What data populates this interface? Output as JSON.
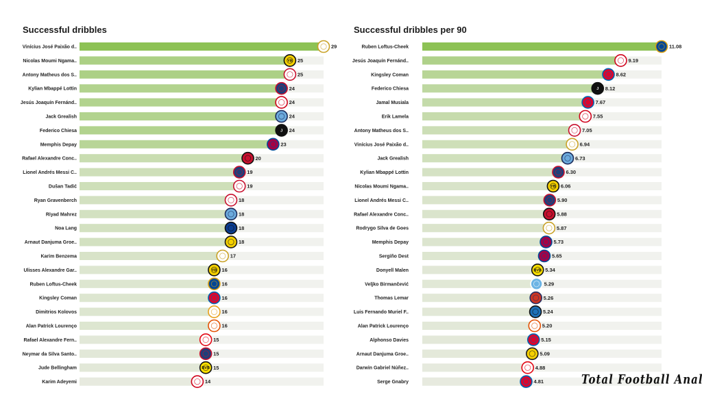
{
  "brand": "Total Football Analysis",
  "colors": {
    "bar_max": "#8dc255",
    "bar_min": "#e7eadf"
  },
  "chart_data": [
    {
      "type": "bar",
      "orientation": "horizontal",
      "title": "Successful dribbles",
      "xlim": [
        0,
        29
      ],
      "categories": [
        "Vinícius José Paixão d..",
        "Nicolas Moumi Ngama..",
        "Antony Matheus dos S..",
        "Kylian Mbappé Lottin",
        "Jesús Joaquín Fernánd..",
        "Jack Grealish",
        "Federico Chiesa",
        "Memphis Depay",
        "Rafael Alexandre Conc..",
        "Lionel Andrés Messi C..",
        "Dušan Tadić",
        "Ryan Gravenberch",
        "Riyad Mahrez",
        "Noa Lang",
        "Arnaut Danjuma Groe..",
        "Karim Benzema",
        "Ulisses Alexandre Gar..",
        "Ruben Loftus-Cheek",
        "Kingsley Coman",
        "Dimitrios Kolovos",
        "Alan Patrick Lourenço",
        "Rafael Alexandre Fern..",
        "Neymar da Silva Santo..",
        "Jude Bellingham",
        "Karim Adeyemi"
      ],
      "values": [
        29,
        25,
        25,
        24,
        24,
        24,
        24,
        23,
        20,
        19,
        19,
        18,
        18,
        18,
        18,
        17,
        16,
        16,
        16,
        16,
        16,
        15,
        15,
        15,
        14
      ],
      "value_labels": [
        "29",
        "25",
        "25",
        "24",
        "24",
        "24",
        "24",
        "23",
        "20",
        "19",
        "19",
        "18",
        "18",
        "18",
        "18",
        "17",
        "16",
        "16",
        "16",
        "16",
        "16",
        "15",
        "15",
        "15",
        "14"
      ],
      "badges": [
        {
          "fill": "#ffffff",
          "stroke": "#c9a227",
          "text": ""
        },
        {
          "fill": "#f5d000",
          "stroke": "#111111",
          "text": "YB"
        },
        {
          "fill": "#ffffff",
          "stroke": "#c8102e",
          "text": ""
        },
        {
          "fill": "#1d3f7a",
          "stroke": "#c8102e",
          "text": ""
        },
        {
          "fill": "#ffffff",
          "stroke": "#d0021b",
          "text": ""
        },
        {
          "fill": "#6cabdd",
          "stroke": "#1c2c5b",
          "text": ""
        },
        {
          "fill": "#111111",
          "stroke": "#111111",
          "text": "J"
        },
        {
          "fill": "#a50044",
          "stroke": "#004d98",
          "text": ""
        },
        {
          "fill": "#c8102e",
          "stroke": "#111111",
          "text": ""
        },
        {
          "fill": "#1d3f7a",
          "stroke": "#c8102e",
          "text": ""
        },
        {
          "fill": "#ffffff",
          "stroke": "#c8102e",
          "text": ""
        },
        {
          "fill": "#ffffff",
          "stroke": "#c8102e",
          "text": ""
        },
        {
          "fill": "#6cabdd",
          "stroke": "#1c2c5b",
          "text": ""
        },
        {
          "fill": "#0a3d91",
          "stroke": "#111111",
          "text": ""
        },
        {
          "fill": "#f5d000",
          "stroke": "#1b1b1b",
          "text": ""
        },
        {
          "fill": "#ffffff",
          "stroke": "#c9a227",
          "text": ""
        },
        {
          "fill": "#f5d000",
          "stroke": "#111111",
          "text": "YB"
        },
        {
          "fill": "#034694",
          "stroke": "#dba111",
          "text": ""
        },
        {
          "fill": "#dc052d",
          "stroke": "#0066b2",
          "text": ""
        },
        {
          "fill": "#ffffff",
          "stroke": "#e8a01c",
          "text": ""
        },
        {
          "fill": "#ffffff",
          "stroke": "#e35205",
          "text": ""
        },
        {
          "fill": "#ffffff",
          "stroke": "#e30613",
          "text": ""
        },
        {
          "fill": "#1d3f7a",
          "stroke": "#c8102e",
          "text": ""
        },
        {
          "fill": "#fde100",
          "stroke": "#111111",
          "text": "BVB"
        },
        {
          "fill": "#ffffff",
          "stroke": "#d0021b",
          "text": ""
        }
      ]
    },
    {
      "type": "bar",
      "orientation": "horizontal",
      "title": "Successful dribbles per 90",
      "xlim": [
        0,
        11.08
      ],
      "categories": [
        "Ruben Loftus-Cheek",
        "Jesús Joaquín Fernánd..",
        "Kingsley Coman",
        "Federico Chiesa",
        "Jamal Musiala",
        "Erik Lamela",
        "Antony Matheus dos S..",
        "Vinícius José Paixão d..",
        "Jack Grealish",
        "Kylian Mbappé Lottin",
        "Nicolas Moumi Ngama..",
        "Lionel Andrés Messi C..",
        "Rafael Alexandre Conc..",
        "Rodrygo Silva de Goes",
        "Memphis Depay",
        "Sergiño Dest",
        "Donyell Malen",
        "Veljko Birmančević",
        "Thomas Lemar",
        "Luis Fernando Muriel F..",
        "Alan Patrick Lourenço",
        "Alphonso Davies",
        "Arnaut Danjuma Groe..",
        "Darwin Gabriel Núñez..",
        "Serge  Gnabry"
      ],
      "values": [
        11.08,
        9.19,
        8.62,
        8.12,
        7.67,
        7.55,
        7.05,
        6.94,
        6.73,
        6.3,
        6.06,
        5.9,
        5.88,
        5.87,
        5.73,
        5.65,
        5.34,
        5.29,
        5.26,
        5.24,
        5.2,
        5.15,
        5.09,
        4.88,
        4.81
      ],
      "value_labels": [
        "11.08",
        "9.19",
        "8.62",
        "8.12",
        "7.67",
        "7.55",
        "7.05",
        "6.94",
        "6.73",
        "6.30",
        "6.06",
        "5.90",
        "5.88",
        "5.87",
        "5.73",
        "5.65",
        "5.34",
        "5.29",
        "5.26",
        "5.24",
        "5.20",
        "5.15",
        "5.09",
        "4.88",
        "4.81"
      ],
      "badges": [
        {
          "fill": "#034694",
          "stroke": "#dba111",
          "text": ""
        },
        {
          "fill": "#ffffff",
          "stroke": "#d0021b",
          "text": ""
        },
        {
          "fill": "#dc052d",
          "stroke": "#0066b2",
          "text": ""
        },
        {
          "fill": "#111111",
          "stroke": "#111111",
          "text": "J"
        },
        {
          "fill": "#dc052d",
          "stroke": "#0066b2",
          "text": ""
        },
        {
          "fill": "#ffffff",
          "stroke": "#d0021b",
          "text": ""
        },
        {
          "fill": "#ffffff",
          "stroke": "#c8102e",
          "text": ""
        },
        {
          "fill": "#ffffff",
          "stroke": "#c9a227",
          "text": ""
        },
        {
          "fill": "#6cabdd",
          "stroke": "#1c2c5b",
          "text": ""
        },
        {
          "fill": "#1d3f7a",
          "stroke": "#c8102e",
          "text": ""
        },
        {
          "fill": "#f5d000",
          "stroke": "#111111",
          "text": "YB"
        },
        {
          "fill": "#1d3f7a",
          "stroke": "#c8102e",
          "text": ""
        },
        {
          "fill": "#c8102e",
          "stroke": "#111111",
          "text": ""
        },
        {
          "fill": "#ffffff",
          "stroke": "#c9a227",
          "text": ""
        },
        {
          "fill": "#a50044",
          "stroke": "#004d98",
          "text": ""
        },
        {
          "fill": "#a50044",
          "stroke": "#004d98",
          "text": ""
        },
        {
          "fill": "#fde100",
          "stroke": "#111111",
          "text": "BVB"
        },
        {
          "fill": "#6cb4e4",
          "stroke": "#ffffff",
          "text": ""
        },
        {
          "fill": "#cb3524",
          "stroke": "#272e61",
          "text": ""
        },
        {
          "fill": "#1e71b8",
          "stroke": "#111111",
          "text": ""
        },
        {
          "fill": "#ffffff",
          "stroke": "#e35205",
          "text": ""
        },
        {
          "fill": "#dc052d",
          "stroke": "#0066b2",
          "text": ""
        },
        {
          "fill": "#f5d000",
          "stroke": "#1b1b1b",
          "text": ""
        },
        {
          "fill": "#ffffff",
          "stroke": "#e30613",
          "text": ""
        },
        {
          "fill": "#dc052d",
          "stroke": "#0066b2",
          "text": ""
        }
      ]
    }
  ]
}
